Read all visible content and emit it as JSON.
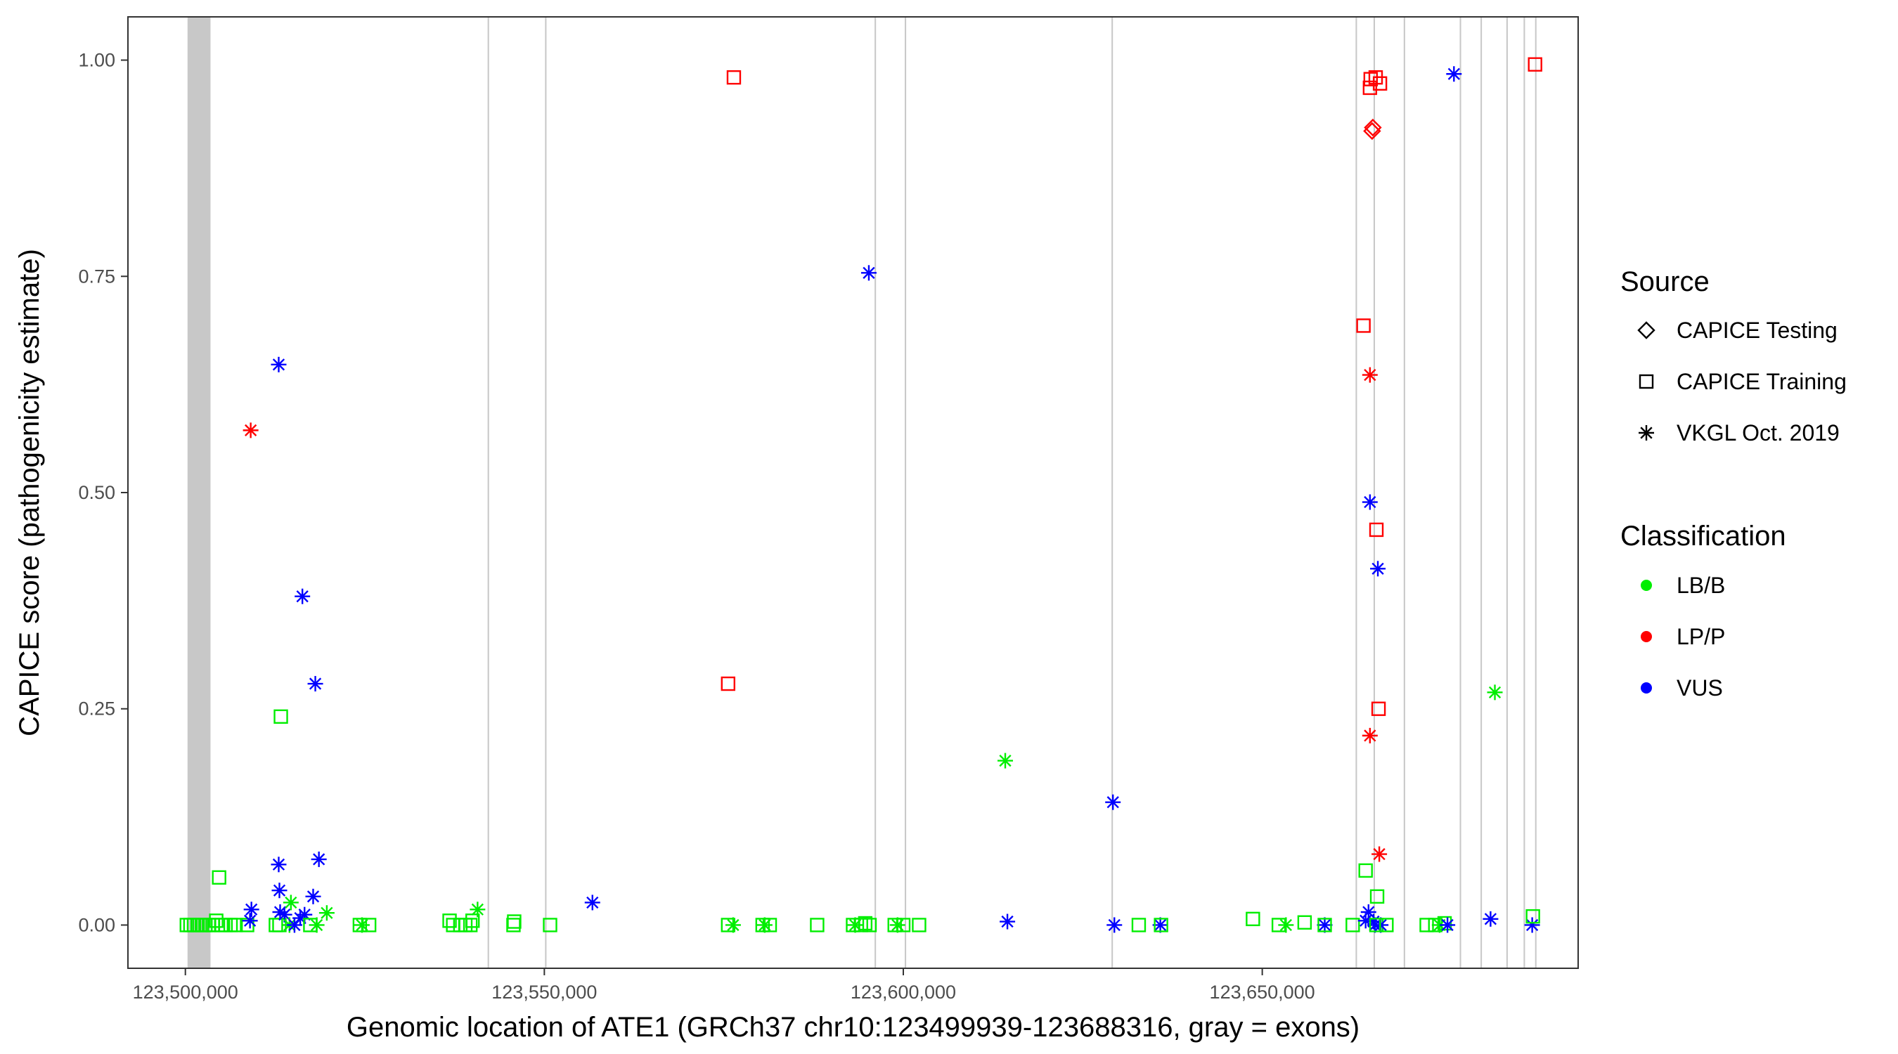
{
  "chart_data": {
    "type": "scatter",
    "xlabel": "Genomic location of ATE1 (GRCh37 chr10:123499939-123688316, gray = exons)",
    "ylabel": "CAPICE score (pathogenicity estimate)",
    "xlim": [
      123492000,
      123694000
    ],
    "ylim": [
      -0.05,
      1.05
    ],
    "x_ticks": [
      123500000,
      123550000,
      123600000,
      123650000
    ],
    "x_tick_labels": [
      "123,500,000",
      "123,550,000",
      "123,600,000",
      "123,650,000"
    ],
    "y_ticks": [
      0,
      0.25,
      0.5,
      0.75,
      1.0
    ],
    "y_tick_labels": [
      "0.00",
      "0.25",
      "0.50",
      "0.75",
      "1.00"
    ],
    "grid": false,
    "exons": [
      [
        123500300,
        123503500
      ],
      [
        123542100,
        123542300
      ],
      [
        123550100,
        123550300
      ],
      [
        123596000,
        123596200
      ],
      [
        123600200,
        123600400
      ],
      [
        123629000,
        123629200
      ],
      [
        123663000,
        123663200
      ],
      [
        123665500,
        123665700
      ],
      [
        123669700,
        123669900
      ],
      [
        123677500,
        123677700
      ],
      [
        123680400,
        123680600
      ],
      [
        123684000,
        123684200
      ],
      [
        123686400,
        123686600
      ],
      [
        123688000,
        123688200
      ]
    ],
    "legend": {
      "placement": "right",
      "source": {
        "title": "Source",
        "entries": [
          {
            "label": "CAPICE Testing",
            "shape": "diamond"
          },
          {
            "label": "CAPICE Training",
            "shape": "square"
          },
          {
            "label": "VKGL Oct. 2019",
            "shape": "asterisk"
          }
        ]
      },
      "classification": {
        "title": "Classification",
        "entries": [
          {
            "label": "LB/B",
            "color": "#00ee00"
          },
          {
            "label": "LP/P",
            "color": "#ff0000"
          },
          {
            "label": "VUS",
            "color": "#0000ff"
          }
        ]
      }
    },
    "points": [
      {
        "x": 123500200,
        "y": 0.0,
        "source": "square",
        "cls": "LB/B"
      },
      {
        "x": 123500700,
        "y": 0.0,
        "source": "square",
        "cls": "LB/B"
      },
      {
        "x": 123501200,
        "y": 0.0,
        "source": "square",
        "cls": "LB/B"
      },
      {
        "x": 123501700,
        "y": 0.0,
        "source": "square",
        "cls": "LB/B"
      },
      {
        "x": 123502300,
        "y": 0.0,
        "source": "square",
        "cls": "LB/B"
      },
      {
        "x": 123502800,
        "y": 0.0,
        "source": "square",
        "cls": "LB/B"
      },
      {
        "x": 123503300,
        "y": 0.0,
        "source": "square",
        "cls": "LB/B"
      },
      {
        "x": 123503800,
        "y": 0.0,
        "source": "square",
        "cls": "LB/B"
      },
      {
        "x": 123504300,
        "y": 0.005,
        "source": "square",
        "cls": "LB/B"
      },
      {
        "x": 123504700,
        "y": 0.055,
        "source": "square",
        "cls": "LB/B"
      },
      {
        "x": 123505000,
        "y": 0.0,
        "source": "square",
        "cls": "LB/B"
      },
      {
        "x": 123505600,
        "y": 0.0,
        "source": "square",
        "cls": "LB/B"
      },
      {
        "x": 123506300,
        "y": 0.0,
        "source": "square",
        "cls": "LB/B"
      },
      {
        "x": 123507000,
        "y": 0.0,
        "source": "square",
        "cls": "LB/B"
      },
      {
        "x": 123508600,
        "y": 0.0,
        "source": "square",
        "cls": "LB/B"
      },
      {
        "x": 123509000,
        "y": 0.005,
        "source": "asterisk",
        "cls": "VUS"
      },
      {
        "x": 123509200,
        "y": 0.018,
        "source": "asterisk",
        "cls": "VUS"
      },
      {
        "x": 123509100,
        "y": 0.572,
        "source": "asterisk",
        "cls": "LP/P"
      },
      {
        "x": 123512600,
        "y": 0.0,
        "source": "square",
        "cls": "LB/B"
      },
      {
        "x": 123513100,
        "y": 0.0,
        "source": "square",
        "cls": "LB/B"
      },
      {
        "x": 123513300,
        "y": 0.241,
        "source": "square",
        "cls": "LB/B"
      },
      {
        "x": 123513000,
        "y": 0.648,
        "source": "asterisk",
        "cls": "VUS"
      },
      {
        "x": 123513000,
        "y": 0.07,
        "source": "asterisk",
        "cls": "VUS"
      },
      {
        "x": 123513100,
        "y": 0.04,
        "source": "asterisk",
        "cls": "VUS"
      },
      {
        "x": 123513200,
        "y": 0.015,
        "source": "asterisk",
        "cls": "VUS"
      },
      {
        "x": 123513800,
        "y": 0.012,
        "source": "asterisk",
        "cls": "VUS"
      },
      {
        "x": 123514500,
        "y": 0.0,
        "source": "asterisk",
        "cls": "LB/B"
      },
      {
        "x": 123514700,
        "y": 0.026,
        "source": "asterisk",
        "cls": "LB/B"
      },
      {
        "x": 123515200,
        "y": 0.0,
        "source": "asterisk",
        "cls": "VUS"
      },
      {
        "x": 123516000,
        "y": 0.008,
        "source": "asterisk",
        "cls": "VUS"
      },
      {
        "x": 123516300,
        "y": 0.38,
        "source": "asterisk",
        "cls": "VUS"
      },
      {
        "x": 123516600,
        "y": 0.012,
        "source": "asterisk",
        "cls": "VUS"
      },
      {
        "x": 123517400,
        "y": 0.0,
        "source": "square",
        "cls": "LB/B"
      },
      {
        "x": 123517800,
        "y": 0.033,
        "source": "asterisk",
        "cls": "VUS"
      },
      {
        "x": 123518100,
        "y": 0.279,
        "source": "asterisk",
        "cls": "VUS"
      },
      {
        "x": 123518300,
        "y": 0.0,
        "source": "asterisk",
        "cls": "LB/B"
      },
      {
        "x": 123518600,
        "y": 0.076,
        "source": "asterisk",
        "cls": "VUS"
      },
      {
        "x": 123519700,
        "y": 0.014,
        "source": "asterisk",
        "cls": "LB/B"
      },
      {
        "x": 123524300,
        "y": 0.0,
        "source": "square",
        "cls": "LB/B"
      },
      {
        "x": 123524600,
        "y": 0.0,
        "source": "asterisk",
        "cls": "LB/B"
      },
      {
        "x": 123525600,
        "y": 0.0,
        "source": "square",
        "cls": "LB/B"
      },
      {
        "x": 123536800,
        "y": 0.005,
        "source": "square",
        "cls": "LB/B"
      },
      {
        "x": 123537300,
        "y": 0.0,
        "source": "square",
        "cls": "LB/B"
      },
      {
        "x": 123538300,
        "y": 0.0,
        "source": "square",
        "cls": "LB/B"
      },
      {
        "x": 123539000,
        "y": 0.0,
        "source": "square",
        "cls": "LB/B"
      },
      {
        "x": 123539700,
        "y": 0.0,
        "source": "square",
        "cls": "LB/B"
      },
      {
        "x": 123540000,
        "y": 0.005,
        "source": "square",
        "cls": "LB/B"
      },
      {
        "x": 123540700,
        "y": 0.018,
        "source": "asterisk",
        "cls": "LB/B"
      },
      {
        "x": 123545700,
        "y": 0.0,
        "source": "square",
        "cls": "LB/B"
      },
      {
        "x": 123545800,
        "y": 0.004,
        "source": "square",
        "cls": "LB/B"
      },
      {
        "x": 123550800,
        "y": 0.0,
        "source": "square",
        "cls": "LB/B"
      },
      {
        "x": 123556700,
        "y": 0.026,
        "source": "asterisk",
        "cls": "VUS"
      },
      {
        "x": 123575600,
        "y": 0.279,
        "source": "square",
        "cls": "LP/P"
      },
      {
        "x": 123575600,
        "y": 0.0,
        "source": "square",
        "cls": "LB/B"
      },
      {
        "x": 123576300,
        "y": 0.0,
        "source": "asterisk",
        "cls": "LB/B"
      },
      {
        "x": 123576400,
        "y": 0.98,
        "source": "square",
        "cls": "LP/P"
      },
      {
        "x": 123580400,
        "y": 0.0,
        "source": "square",
        "cls": "LB/B"
      },
      {
        "x": 123580700,
        "y": 0.0,
        "source": "asterisk",
        "cls": "LB/B"
      },
      {
        "x": 123581400,
        "y": 0.0,
        "source": "square",
        "cls": "LB/B"
      },
      {
        "x": 123588000,
        "y": 0.0,
        "source": "square",
        "cls": "LB/B"
      },
      {
        "x": 123593000,
        "y": 0.0,
        "source": "square",
        "cls": "LB/B"
      },
      {
        "x": 123593300,
        "y": 0.0,
        "source": "asterisk",
        "cls": "LB/B"
      },
      {
        "x": 123594100,
        "y": 0.0,
        "source": "square",
        "cls": "LB/B"
      },
      {
        "x": 123594700,
        "y": 0.002,
        "source": "square",
        "cls": "LB/B"
      },
      {
        "x": 123595200,
        "y": 0.754,
        "source": "asterisk",
        "cls": "VUS"
      },
      {
        "x": 123595300,
        "y": 0.0,
        "source": "square",
        "cls": "LB/B"
      },
      {
        "x": 123598800,
        "y": 0.0,
        "source": "square",
        "cls": "LB/B"
      },
      {
        "x": 123599200,
        "y": 0.0,
        "source": "asterisk",
        "cls": "LB/B"
      },
      {
        "x": 123600000,
        "y": 0.0,
        "source": "square",
        "cls": "LB/B"
      },
      {
        "x": 123602200,
        "y": 0.0,
        "source": "square",
        "cls": "LB/B"
      },
      {
        "x": 123614200,
        "y": 0.19,
        "source": "asterisk",
        "cls": "LB/B"
      },
      {
        "x": 123614500,
        "y": 0.004,
        "source": "asterisk",
        "cls": "VUS"
      },
      {
        "x": 123629200,
        "y": 0.142,
        "source": "asterisk",
        "cls": "VUS"
      },
      {
        "x": 123629400,
        "y": 0.0,
        "source": "asterisk",
        "cls": "VUS"
      },
      {
        "x": 123632800,
        "y": 0.0,
        "source": "square",
        "cls": "LB/B"
      },
      {
        "x": 123635800,
        "y": 0.0,
        "source": "asterisk",
        "cls": "VUS"
      },
      {
        "x": 123635900,
        "y": 0.0,
        "source": "square",
        "cls": "LB/B"
      },
      {
        "x": 123648700,
        "y": 0.007,
        "source": "square",
        "cls": "LB/B"
      },
      {
        "x": 123652300,
        "y": 0.0,
        "source": "square",
        "cls": "LB/B"
      },
      {
        "x": 123653300,
        "y": 0.0,
        "source": "asterisk",
        "cls": "LB/B"
      },
      {
        "x": 123655900,
        "y": 0.003,
        "source": "square",
        "cls": "LB/B"
      },
      {
        "x": 123658700,
        "y": 0.0,
        "source": "asterisk",
        "cls": "VUS"
      },
      {
        "x": 123658700,
        "y": 0.0,
        "source": "square",
        "cls": "LB/B"
      },
      {
        "x": 123662600,
        "y": 0.0,
        "source": "square",
        "cls": "LB/B"
      },
      {
        "x": 123664400,
        "y": 0.063,
        "source": "square",
        "cls": "LB/B"
      },
      {
        "x": 123664100,
        "y": 0.693,
        "source": "square",
        "cls": "LP/P"
      },
      {
        "x": 123664400,
        "y": 0.005,
        "source": "asterisk",
        "cls": "VUS"
      },
      {
        "x": 123664800,
        "y": 0.015,
        "source": "asterisk",
        "cls": "VUS"
      },
      {
        "x": 123665000,
        "y": 0.968,
        "source": "square",
        "cls": "LP/P"
      },
      {
        "x": 123665100,
        "y": 0.978,
        "source": "square",
        "cls": "LP/P"
      },
      {
        "x": 123665000,
        "y": 0.636,
        "source": "asterisk",
        "cls": "LP/P"
      },
      {
        "x": 123665000,
        "y": 0.489,
        "source": "asterisk",
        "cls": "VUS"
      },
      {
        "x": 123665000,
        "y": 0.219,
        "source": "asterisk",
        "cls": "LP/P"
      },
      {
        "x": 123665300,
        "y": 0.918,
        "source": "diamond",
        "cls": "LP/P"
      },
      {
        "x": 123665400,
        "y": 0.922,
        "source": "diamond",
        "cls": "LP/P"
      },
      {
        "x": 123665500,
        "y": 0.004,
        "source": "asterisk",
        "cls": "VUS"
      },
      {
        "x": 123665700,
        "y": 0.0,
        "source": "asterisk",
        "cls": "VUS"
      },
      {
        "x": 123665800,
        "y": 0.98,
        "source": "square",
        "cls": "LP/P"
      },
      {
        "x": 123665900,
        "y": 0.457,
        "source": "square",
        "cls": "LP/P"
      },
      {
        "x": 123665900,
        "y": 0.0,
        "source": "square",
        "cls": "LB/B"
      },
      {
        "x": 123666000,
        "y": 0.033,
        "source": "square",
        "cls": "LB/B"
      },
      {
        "x": 123666100,
        "y": 0.412,
        "source": "asterisk",
        "cls": "VUS"
      },
      {
        "x": 123666200,
        "y": 0.25,
        "source": "square",
        "cls": "LP/P"
      },
      {
        "x": 123666300,
        "y": 0.082,
        "source": "asterisk",
        "cls": "LP/P"
      },
      {
        "x": 123666400,
        "y": 0.973,
        "source": "square",
        "cls": "LP/P"
      },
      {
        "x": 123666500,
        "y": 0.0,
        "source": "asterisk",
        "cls": "VUS"
      },
      {
        "x": 123667300,
        "y": 0.0,
        "source": "square",
        "cls": "LB/B"
      },
      {
        "x": 123672900,
        "y": 0.0,
        "source": "square",
        "cls": "LB/B"
      },
      {
        "x": 123674100,
        "y": 0.0,
        "source": "square",
        "cls": "LB/B"
      },
      {
        "x": 123674700,
        "y": 0.0,
        "source": "asterisk",
        "cls": "LB/B"
      },
      {
        "x": 123675400,
        "y": 0.002,
        "source": "square",
        "cls": "LB/B"
      },
      {
        "x": 123675800,
        "y": 0.0,
        "source": "asterisk",
        "cls": "VUS"
      },
      {
        "x": 123676700,
        "y": 0.984,
        "source": "asterisk",
        "cls": "VUS"
      },
      {
        "x": 123681800,
        "y": 0.007,
        "source": "asterisk",
        "cls": "VUS"
      },
      {
        "x": 123682400,
        "y": 0.269,
        "source": "asterisk",
        "cls": "LB/B"
      },
      {
        "x": 123687600,
        "y": 0.0,
        "source": "asterisk",
        "cls": "VUS"
      },
      {
        "x": 123687700,
        "y": 0.01,
        "source": "square",
        "cls": "LB/B"
      },
      {
        "x": 123688000,
        "y": 0.995,
        "source": "square",
        "cls": "LP/P"
      }
    ]
  }
}
